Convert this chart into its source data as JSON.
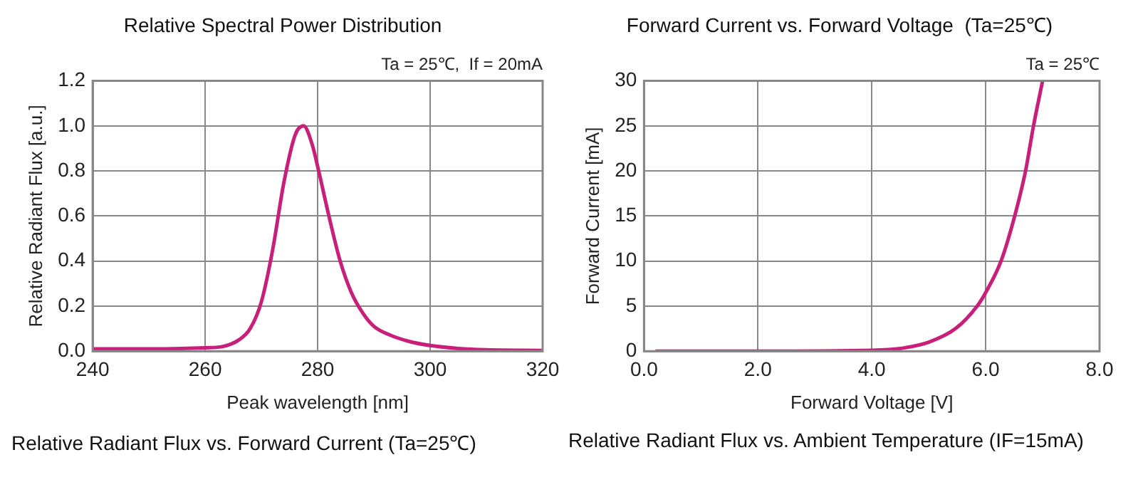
{
  "chart_data": [
    {
      "type": "line",
      "title": "Relative Spectral Power Distribution",
      "xlabel": "Peak wavelength [nm]",
      "ylabel": "Relative Radiant Flux [a.u.]",
      "annotations": [
        "Ta = 25℃,  If = 20mA",
        "Relative Radiant Flux vs. Forward Current (Ta=25℃)"
      ],
      "x": [
        240,
        250,
        260,
        263,
        266,
        268,
        270,
        272,
        274,
        276,
        277.5,
        279,
        280,
        282,
        284,
        286,
        288,
        290,
        293,
        296,
        300,
        305,
        310,
        320
      ],
      "series": [
        {
          "color": "#c8207a",
          "values": [
            0.01,
            0.01,
            0.015,
            0.02,
            0.05,
            0.1,
            0.22,
            0.45,
            0.75,
            0.96,
            1.0,
            0.92,
            0.82,
            0.6,
            0.4,
            0.26,
            0.17,
            0.11,
            0.07,
            0.045,
            0.025,
            0.012,
            0.006,
            0.003
          ]
        }
      ],
      "xlim": [
        240,
        320
      ],
      "xticks": [
        240,
        260,
        280,
        300,
        320
      ],
      "ylim": [
        0,
        1.2
      ],
      "yticks": [
        {
          "value": 0,
          "label": "0.0"
        },
        {
          "value": 0.2,
          "label": "0.2"
        },
        {
          "value": 0.4,
          "label": "0.4"
        },
        {
          "value": 0.6,
          "label": "0.6"
        },
        {
          "value": 0.8,
          "label": "0.8"
        },
        {
          "value": 1.0,
          "label": "1.0"
        },
        {
          "value": 1.2,
          "label": "1.2"
        }
      ],
      "grid": true,
      "legend": false,
      "marker": "none",
      "line_style": "solid"
    },
    {
      "type": "line",
      "title": "Forward Current vs. Forward Voltage  (Ta=25℃)",
      "xlabel": "Forward Voltage [V]",
      "ylabel": "Forward Current [mA]",
      "annotations": [
        "Ta = 25℃",
        "Relative Radiant Flux vs. Ambient Temperature (IF=15mA)"
      ],
      "x": [
        0.2,
        2.0,
        4.0,
        4.5,
        5.0,
        5.47,
        5.85,
        6.0,
        6.27,
        6.51,
        6.7,
        6.84,
        7.0
      ],
      "series": [
        {
          "color": "#c8207a",
          "values": [
            0,
            0,
            0.1,
            0.3,
            1,
            2.5,
            5,
            6.5,
            10,
            15,
            20,
            25,
            30
          ]
        }
      ],
      "xlim": [
        0,
        8
      ],
      "xticks": [
        {
          "value": 0,
          "label": "0.0"
        },
        {
          "value": 2,
          "label": "2.0"
        },
        {
          "value": 4,
          "label": "4.0"
        },
        {
          "value": 6,
          "label": "6.0"
        },
        {
          "value": 8,
          "label": "8.0"
        }
      ],
      "ylim": [
        0,
        30
      ],
      "yticks": [
        0,
        5,
        10,
        15,
        20,
        25,
        30
      ],
      "grid": true,
      "legend": false,
      "marker": "none",
      "line_style": "solid"
    }
  ]
}
